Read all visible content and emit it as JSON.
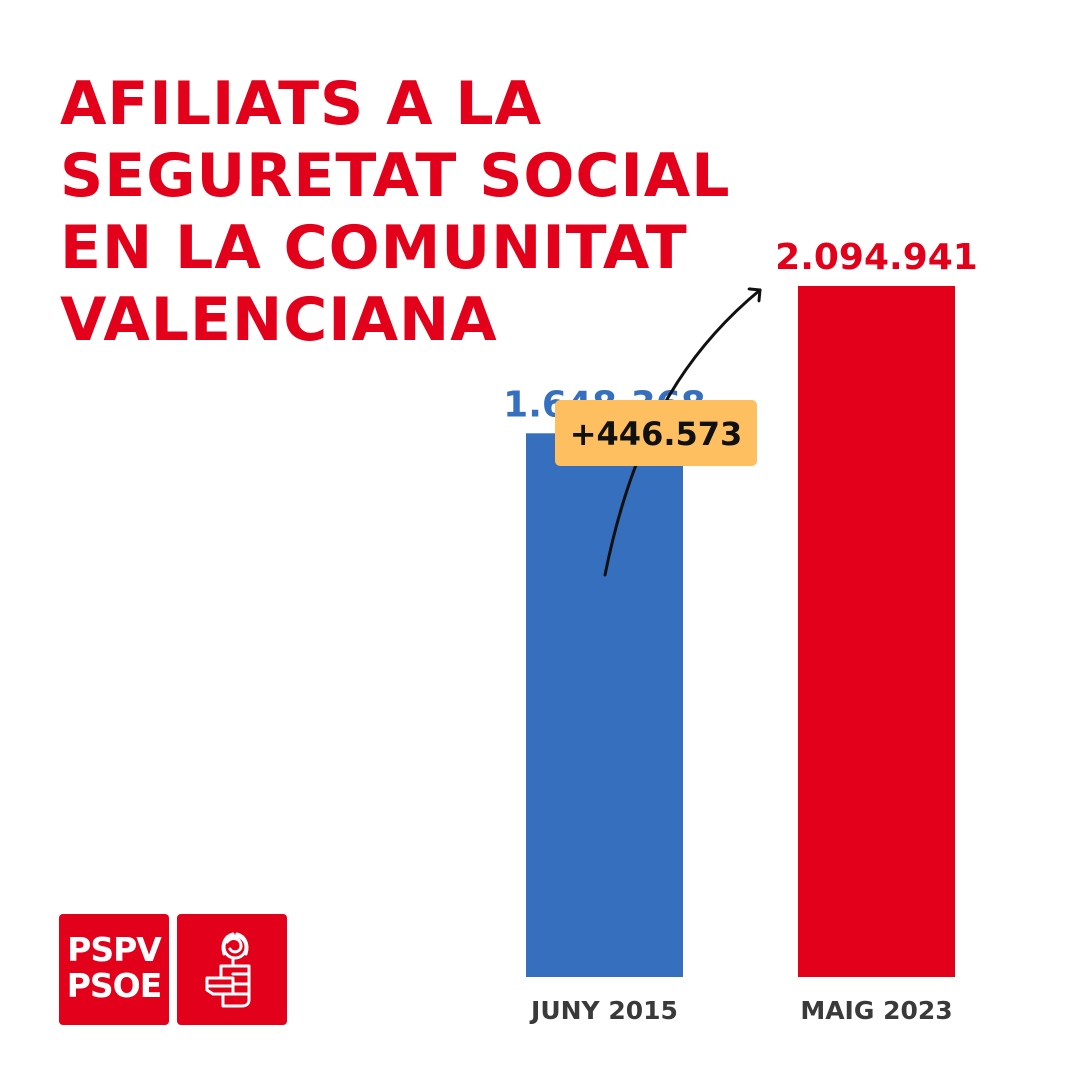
{
  "header": {
    "title_lines": [
      "AFILIATS A LA",
      "SEGURETAT SOCIAL",
      "EN LA COMUNITAT",
      "VALENCIANA"
    ]
  },
  "chart_data": {
    "type": "bar",
    "title": "AFILIATS A LA SEGURETAT SOCIAL EN LA COMUNITAT VALENCIANA",
    "categories": [
      "JUNY 2015",
      "MAIG 2023"
    ],
    "values": [
      1648368,
      2094941
    ],
    "value_labels": [
      "1.648.368",
      "2.094.941"
    ],
    "bar_colors": [
      "#356fbd",
      "#e2001a"
    ],
    "xlabel": "",
    "ylabel": "",
    "ylim": [
      0,
      2094941
    ],
    "grid": false,
    "annotation": {
      "text": "+446.573",
      "color": "#fdbf60"
    }
  },
  "logo": {
    "text_lines": [
      "PSPV",
      "PSOE"
    ],
    "emblem_icon": "fist-rose-icon",
    "color": "#e2001a"
  }
}
